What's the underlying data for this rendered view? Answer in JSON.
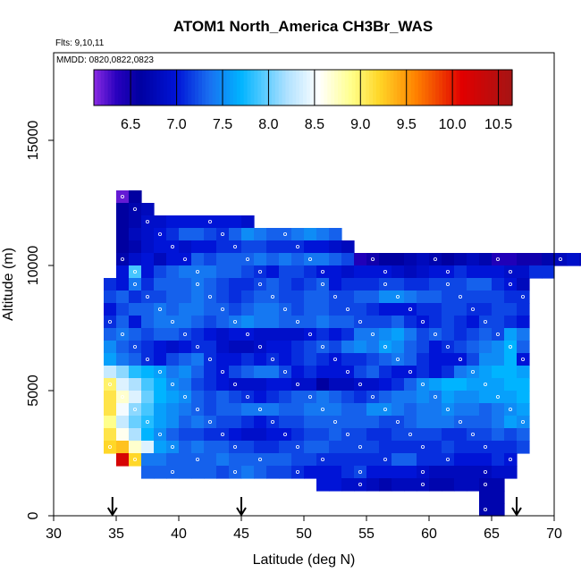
{
  "chart_data": {
    "type": "heatmap",
    "title": "ATOM1 North_America CH3Br_WAS",
    "flights_note": "Flts: 9,10,11",
    "dates_note": "MMDD: 0820,0822,0823",
    "xlabel": "Latitude (deg N)",
    "ylabel": "Altitude (m)",
    "xlim": [
      30,
      70
    ],
    "ylim": [
      0,
      18500
    ],
    "x_ticks": [
      "30",
      "35",
      "40",
      "45",
      "50",
      "55",
      "60",
      "65",
      "70"
    ],
    "y_ticks": [
      "0",
      "5000",
      "10000",
      "15000"
    ],
    "colorbar": {
      "range": [
        6.1,
        10.65
      ],
      "ticks": [
        "6.5",
        "7.0",
        "7.5",
        "8.0",
        "8.5",
        "9.0",
        "9.5",
        "10.0",
        "10.5"
      ]
    },
    "arrows_at_latitude": [
      34.7,
      45.0,
      67.0
    ],
    "cell_size": {
      "lat": 1.0,
      "alt": 500
    },
    "rows": [
      {
        "alt": 12750,
        "lat0": 35.0,
        "values": [
          6.2,
          6.6
        ]
      },
      {
        "alt": 12250,
        "lat0": 35.0,
        "values": [
          6.6,
          6.7,
          6.8
        ]
      },
      {
        "alt": 11750,
        "lat0": 35.0,
        "values": [
          6.6,
          6.7,
          6.9,
          6.9,
          7.0,
          7.0,
          7.0,
          7.0,
          7.0,
          7.0,
          6.9
        ]
      },
      {
        "alt": 11250,
        "lat0": 35.0,
        "values": [
          6.6,
          6.8,
          6.9,
          7.0,
          7.1,
          7.3,
          7.3,
          7.2,
          7.1,
          7.3,
          7.5,
          7.4,
          7.3,
          7.3,
          7.4,
          7.5,
          7.4,
          7.3
        ]
      },
      {
        "alt": 10750,
        "lat0": 35.0,
        "values": [
          6.6,
          6.7,
          6.9,
          7.0,
          7.0,
          6.9,
          7.0,
          7.0,
          7.1,
          7.1,
          7.2,
          7.2,
          7.1,
          7.1,
          7.1,
          7.0,
          7.0,
          6.9,
          6.8
        ]
      },
      {
        "alt": 10250,
        "lat0": 35.0,
        "values": [
          6.7,
          6.9,
          7.0,
          6.8,
          7.0,
          7.0,
          7.3,
          7.2,
          7.3,
          7.3,
          7.3,
          7.4,
          7.3,
          7.4,
          7.3,
          7.4,
          7.4,
          7.3,
          7.2,
          6.4,
          6.5,
          6.6,
          6.6,
          6.7,
          6.8,
          6.7,
          6.6,
          6.7,
          6.8,
          6.7,
          6.4,
          6.4,
          6.5,
          6.5,
          6.7,
          6.8,
          6.9,
          6.8,
          6.7,
          6.7,
          6.6,
          6.6,
          6.6
        ]
      },
      {
        "alt": 9750,
        "lat0": 35.0,
        "values": [
          7.0,
          7.9,
          7.0,
          7.2,
          7.3,
          7.4,
          7.4,
          7.4,
          7.3,
          7.3,
          7.2,
          7.1,
          7.0,
          7.2,
          7.2,
          7.1,
          7.0,
          7.0,
          6.9,
          7.0,
          7.0,
          7.0,
          6.9,
          6.8,
          6.9,
          7.0,
          7.0,
          7.1,
          7.0,
          7.0,
          7.0,
          6.9,
          6.9,
          7.1,
          7.1
        ]
      },
      {
        "alt": 9250,
        "lat0": 34.0,
        "values": [
          7.1,
          7.0,
          7.4,
          7.1,
          7.3,
          7.3,
          7.3,
          7.4,
          7.3,
          7.2,
          7.1,
          7.1,
          7.2,
          7.3,
          7.2,
          7.1,
          7.2,
          7.3,
          7.0,
          7.1,
          7.1,
          7.1,
          7.2,
          7.2,
          7.1,
          7.1,
          7.2,
          7.2,
          7.2,
          7.3,
          7.3,
          7.1,
          7.0,
          6.8
        ]
      },
      {
        "alt": 8750,
        "lat0": 34.0,
        "values": [
          7.2,
          7.3,
          7.1,
          7.2,
          7.2,
          7.3,
          7.3,
          7.4,
          7.3,
          7.2,
          7.1,
          7.2,
          7.3,
          7.3,
          7.2,
          7.2,
          7.3,
          7.3,
          7.2,
          7.2,
          7.3,
          7.3,
          7.5,
          7.5,
          7.4,
          7.3,
          7.3,
          7.2,
          7.2,
          7.2,
          7.2,
          7.2,
          7.1,
          7.1
        ]
      },
      {
        "alt": 8250,
        "lat0": 34.0,
        "values": [
          7.0,
          7.2,
          7.3,
          7.3,
          7.4,
          7.3,
          7.4,
          7.4,
          7.3,
          7.3,
          7.2,
          7.3,
          7.4,
          7.4,
          7.3,
          7.2,
          7.3,
          7.3,
          7.2,
          7.2,
          7.2,
          7.1,
          7.0,
          7.0,
          7.0,
          7.1,
          7.1,
          7.2,
          7.2,
          7.1,
          7.1,
          7.2,
          7.2,
          7.1
        ]
      },
      {
        "alt": 7750,
        "lat0": 34.0,
        "values": [
          7.1,
          7.3,
          7.0,
          7.3,
          7.4,
          7.4,
          7.4,
          7.3,
          7.2,
          7.3,
          7.4,
          7.5,
          7.4,
          7.4,
          7.3,
          7.3,
          7.3,
          7.4,
          7.3,
          7.3,
          7.2,
          7.2,
          7.2,
          7.3,
          7.1,
          7.0,
          7.1,
          7.2,
          7.1,
          7.0,
          7.2,
          7.2,
          7.1,
          7.0
        ]
      },
      {
        "alt": 7250,
        "lat0": 34.0,
        "values": [
          7.3,
          7.4,
          7.3,
          7.2,
          7.3,
          7.3,
          7.2,
          7.1,
          7.0,
          6.9,
          7.0,
          7.0,
          6.9,
          6.9,
          6.9,
          6.9,
          7.0,
          7.1,
          7.0,
          7.1,
          7.4,
          7.4,
          7.5,
          7.6,
          7.4,
          7.2,
          7.3,
          7.2,
          7.1,
          7.2,
          7.3,
          7.2,
          7.6,
          7.4
        ]
      },
      {
        "alt": 6750,
        "lat0": 34.0,
        "values": [
          7.5,
          7.3,
          7.2,
          7.1,
          7.0,
          6.9,
          7.0,
          7.1,
          7.1,
          6.9,
          6.8,
          6.8,
          6.9,
          7.0,
          7.0,
          7.1,
          7.2,
          7.3,
          7.2,
          7.4,
          7.5,
          7.4,
          7.6,
          7.5,
          7.3,
          7.2,
          7.0,
          7.1,
          7.2,
          7.3,
          7.4,
          7.5,
          7.7,
          7.3
        ]
      },
      {
        "alt": 6250,
        "lat0": 34.0,
        "values": [
          7.6,
          7.4,
          7.3,
          7.1,
          7.0,
          7.2,
          7.3,
          7.4,
          7.1,
          7.0,
          7.0,
          7.1,
          7.0,
          7.1,
          7.0,
          7.1,
          7.2,
          7.1,
          7.0,
          7.1,
          7.1,
          7.2,
          7.3,
          7.4,
          7.3,
          7.1,
          7.0,
          7.0,
          7.0,
          7.2,
          7.5,
          7.5,
          7.7,
          7.0
        ]
      },
      {
        "alt": 5750,
        "lat0": 34.0,
        "values": [
          8.3,
          8.1,
          7.8,
          7.7,
          7.6,
          7.4,
          7.5,
          7.3,
          7.1,
          7.0,
          7.2,
          7.3,
          7.4,
          7.4,
          7.2,
          7.0,
          7.1,
          7.0,
          7.0,
          7.0,
          7.2,
          7.3,
          7.1,
          7.0,
          7.0,
          7.1,
          7.0,
          7.1,
          7.4,
          7.5,
          7.6,
          7.7,
          7.7,
          7.6
        ]
      },
      {
        "alt": 5250,
        "lat0": 34.0,
        "values": [
          9.0,
          8.4,
          8.2,
          7.9,
          7.7,
          7.5,
          7.4,
          7.2,
          7.1,
          7.0,
          6.9,
          6.9,
          6.9,
          7.0,
          7.0,
          6.9,
          6.9,
          6.6,
          6.8,
          6.8,
          6.9,
          6.9,
          7.0,
          7.1,
          7.3,
          7.5,
          7.6,
          7.7,
          7.7,
          7.6,
          7.6,
          7.6,
          7.7,
          7.7
        ]
      },
      {
        "alt": 4750,
        "lat0": 34.0,
        "values": [
          9.1,
          8.7,
          8.4,
          8.0,
          7.7,
          7.6,
          7.5,
          7.3,
          7.2,
          7.3,
          7.2,
          7.1,
          7.0,
          7.1,
          7.2,
          7.3,
          7.3,
          7.4,
          7.3,
          7.2,
          7.1,
          7.2,
          7.3,
          7.4,
          7.4,
          7.5,
          7.4,
          7.6,
          7.5,
          7.5,
          7.6,
          7.6,
          7.6,
          7.7
        ]
      },
      {
        "alt": 4250,
        "lat0": 34.0,
        "values": [
          9.1,
          8.5,
          8.1,
          7.9,
          7.6,
          7.5,
          7.4,
          7.3,
          7.2,
          7.3,
          7.3,
          7.4,
          7.4,
          7.4,
          7.3,
          7.3,
          7.4,
          7.4,
          7.4,
          7.3,
          7.3,
          7.5,
          7.5,
          7.4,
          7.3,
          7.4,
          7.4,
          7.5,
          7.4,
          7.4,
          7.3,
          7.4,
          7.5,
          7.6
        ]
      },
      {
        "alt": 3750,
        "lat0": 34.0,
        "values": [
          8.9,
          8.3,
          8.0,
          7.8,
          7.6,
          7.5,
          7.3,
          7.4,
          7.3,
          7.2,
          7.2,
          7.1,
          7.0,
          7.1,
          7.2,
          7.2,
          7.3,
          7.3,
          7.3,
          7.3,
          7.3,
          7.3,
          7.2,
          7.2,
          7.3,
          7.4,
          7.4,
          7.4,
          7.3,
          7.3,
          7.3,
          7.4,
          7.6,
          7.5
        ]
      },
      {
        "alt": 3250,
        "lat0": 34.0,
        "values": [
          9.1,
          8.6,
          8.2,
          7.7,
          7.5,
          7.3,
          7.2,
          7.2,
          7.1,
          7.1,
          7.0,
          6.9,
          6.9,
          7.0,
          7.0,
          7.1,
          7.2,
          7.2,
          7.3,
          7.2,
          7.2,
          7.1,
          7.1,
          7.2,
          7.2,
          7.2,
          7.2,
          7.1,
          7.1,
          7.2,
          7.2,
          7.3,
          7.2,
          7.3
        ]
      },
      {
        "alt": 2750,
        "lat0": 34.0,
        "values": [
          9.2,
          9.3,
          8.7,
          8.4,
          7.6,
          7.5,
          7.3,
          7.4,
          7.3,
          7.3,
          7.2,
          7.2,
          7.1,
          7.1,
          7.2,
          7.2,
          7.3,
          7.3,
          7.2,
          7.2,
          7.2,
          7.2,
          7.1,
          7.1,
          7.1,
          7.1,
          7.1,
          7.2,
          7.1,
          7.1,
          7.1,
          7.1,
          7.1,
          7.2
        ]
      },
      {
        "alt": 2250,
        "lat0": 35.0,
        "values": [
          10.2,
          9.2,
          7.4,
          7.4,
          7.3,
          7.3,
          7.3,
          7.3,
          7.4,
          7.3,
          7.3,
          7.3,
          7.3,
          7.3,
          7.2,
          7.2,
          7.1,
          7.1,
          7.1,
          7.1,
          7.1,
          7.1,
          7.3,
          7.3,
          7.1,
          7.1,
          7.1,
          7.0,
          7.0,
          7.0,
          7.1,
          7.0
        ]
      },
      {
        "alt": 1750,
        "lat0": 37.0,
        "values": [
          7.3,
          7.3,
          7.3,
          7.3,
          7.3,
          7.3,
          7.2,
          7.3,
          7.4,
          7.3,
          7.2,
          7.2,
          7.1,
          7.0,
          7.0,
          7.0,
          7.1,
          7.2,
          7.0,
          7.0,
          7.0,
          7.0,
          6.9,
          6.8,
          6.8,
          6.8,
          6.8,
          6.8,
          6.9,
          6.9
        ]
      },
      {
        "alt": 1250,
        "lat0": 51.0,
        "values": [
          7.0,
          7.0,
          6.9,
          6.9,
          6.8,
          6.7,
          6.8,
          6.8,
          6.8,
          6.7,
          6.7,
          6.8,
          6.8,
          6.7,
          6.7
        ]
      },
      {
        "alt": 750,
        "lat0": 64.0,
        "values": [
          6.7,
          6.7
        ]
      },
      {
        "alt": 250,
        "lat0": 64.0,
        "values": [
          6.7,
          6.7
        ]
      }
    ]
  }
}
